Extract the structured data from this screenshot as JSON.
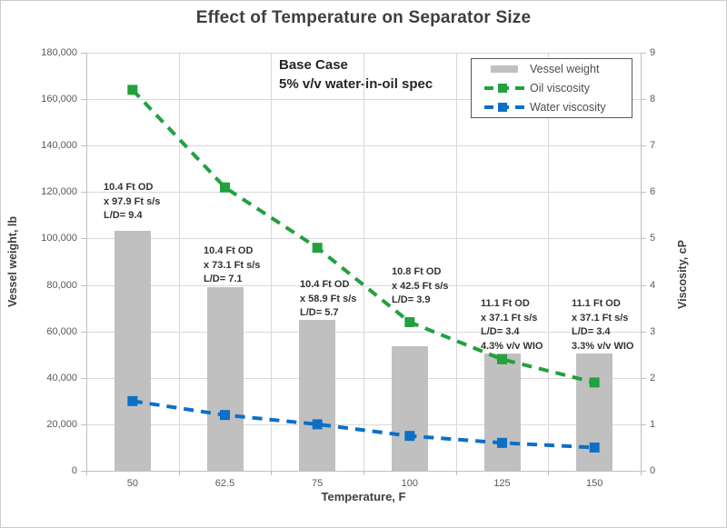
{
  "title": "Effect of Temperature on Separator Size",
  "note": {
    "line1": "Base Case",
    "line2": "5% v/v water-in-oil spec"
  },
  "legend": {
    "items": [
      {
        "label": "Vessel weight",
        "type": "bar",
        "color": "#c0c0c0"
      },
      {
        "label": "Oil viscosity",
        "type": "line",
        "color": "#22a13e"
      },
      {
        "label": "Water viscosity",
        "type": "line",
        "color": "#0c70c6"
      }
    ]
  },
  "chart_data": {
    "type": "bar+line",
    "title": "Effect of Temperature on Separator Size",
    "xlabel": "Temperature, F",
    "ylabel_left": "Vessel weight, lb",
    "ylabel_right": "Viscosity, cP",
    "categories": [
      "50",
      "62.5",
      "75",
      "100",
      "125",
      "150"
    ],
    "ylim_left": [
      0,
      180000
    ],
    "ylim_right": [
      0,
      9
    ],
    "yticks_left": [
      "0",
      "20,000",
      "40,000",
      "60,000",
      "80,000",
      "100,000",
      "120,000",
      "140,000",
      "160,000",
      "180,000"
    ],
    "yticks_right": [
      "0",
      "1",
      "2",
      "3",
      "4",
      "5",
      "6",
      "7",
      "8",
      "9"
    ],
    "grid": true,
    "legend_position": "top-right",
    "series": [
      {
        "name": "Vessel weight",
        "type": "bar",
        "axis": "left",
        "color": "#c0c0c0",
        "values": [
          103500,
          79000,
          65000,
          53500,
          50500,
          50500
        ]
      },
      {
        "name": "Oil viscosity",
        "type": "line",
        "axis": "right",
        "color": "#22a13e",
        "values": [
          8.2,
          6.1,
          4.8,
          3.2,
          2.4,
          1.9
        ]
      },
      {
        "name": "Water viscosity",
        "type": "line",
        "axis": "right",
        "color": "#0c70c6",
        "values": [
          1.5,
          1.2,
          1.0,
          0.75,
          0.6,
          0.5
        ]
      }
    ],
    "annotations": [
      {
        "lines": [
          "10.4 Ft OD",
          "x 97.9 Ft s/s",
          "L/D= 9.4"
        ]
      },
      {
        "lines": [
          "10.4 Ft OD",
          "x 73.1 Ft s/s",
          "L/D= 7.1"
        ]
      },
      {
        "lines": [
          "10.4 Ft OD",
          "x 58.9 Ft s/s",
          "L/D= 5.7"
        ]
      },
      {
        "lines": [
          "10.8 Ft OD",
          "x 42.5 Ft s/s",
          "L/D= 3.9"
        ]
      },
      {
        "lines": [
          "11.1 Ft OD",
          "x 37.1 Ft s/s",
          "L/D= 3.4",
          "4.3% v/v WIO"
        ]
      },
      {
        "lines": [
          "11.1 Ft OD",
          "x 37.1 Ft s/s",
          "L/D= 3.4",
          "3.3% v/v WIO"
        ]
      }
    ]
  }
}
